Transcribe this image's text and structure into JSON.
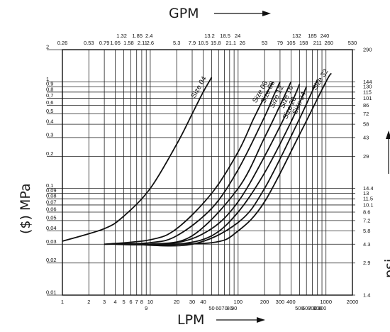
{
  "chart_data": {
    "type": "line",
    "title": "",
    "top_axis": {
      "label": "GPM",
      "ticks": [
        {
          "label": "0.26",
          "lpm": 1
        },
        {
          "label": "0.53",
          "lpm": 2
        },
        {
          "label": "0.79",
          "lpm": 3
        },
        {
          "label": "1.05",
          "lpm": 4
        },
        {
          "label": "1.32",
          "lpm": 5
        },
        {
          "label": "1.58",
          "lpm": 6
        },
        {
          "label": "1.85",
          "lpm": 7
        },
        {
          "label": "2.11",
          "lpm": 8
        },
        {
          "label": "2.4",
          "lpm": 9
        },
        {
          "label": "2.6",
          "lpm": 10
        },
        {
          "label": "5.3",
          "lpm": 20
        },
        {
          "label": "7.9",
          "lpm": 30
        },
        {
          "label": "10.5",
          "lpm": 40
        },
        {
          "label": "13.2",
          "lpm": 50
        },
        {
          "label": "15.8",
          "lpm": 60
        },
        {
          "label": "18.5",
          "lpm": 70
        },
        {
          "label": "21.1",
          "lpm": 80
        },
        {
          "label": "24",
          "lpm": 90
        },
        {
          "label": "26",
          "lpm": 100
        },
        {
          "label": "53",
          "lpm": 200
        },
        {
          "label": "79",
          "lpm": 300
        },
        {
          "label": "105",
          "lpm": 400
        },
        {
          "label": "132",
          "lpm": 500
        },
        {
          "label": "158",
          "lpm": 600
        },
        {
          "label": "185",
          "lpm": 700
        },
        {
          "label": "211",
          "lpm": 800
        },
        {
          "label": "240",
          "lpm": 900
        },
        {
          "label": "260",
          "lpm": 1000
        },
        {
          "label": "530",
          "lpm": 2000
        }
      ]
    },
    "bottom_axis": {
      "label": "LPM",
      "scale": "log",
      "range": [
        1,
        2000
      ],
      "ticks": [
        {
          "label": "1",
          "value": 1
        },
        {
          "label": "2",
          "value": 2
        },
        {
          "label": "3",
          "value": 3
        },
        {
          "label": "4",
          "value": 4
        },
        {
          "label": "5",
          "value": 5
        },
        {
          "label": "6",
          "value": 6
        },
        {
          "label": "7",
          "value": 7
        },
        {
          "label": "8",
          "value": 8
        },
        {
          "label": "9",
          "value": 9
        },
        {
          "label": "10",
          "value": 10
        },
        {
          "label": "20",
          "value": 20
        },
        {
          "label": "30",
          "value": 30
        },
        {
          "label": "40",
          "value": 40
        },
        {
          "label": "50",
          "value": 50
        },
        {
          "label": "60",
          "value": 60
        },
        {
          "label": "70",
          "value": 70
        },
        {
          "label": "80",
          "value": 80
        },
        {
          "label": "90",
          "value": 90
        },
        {
          "label": "100",
          "value": 100
        },
        {
          "label": "200",
          "value": 200
        },
        {
          "label": "300",
          "value": 300
        },
        {
          "label": "400",
          "value": 400
        },
        {
          "label": "500",
          "value": 500
        },
        {
          "label": "600",
          "value": 600
        },
        {
          "label": "700",
          "value": 700
        },
        {
          "label": "800",
          "value": 800
        },
        {
          "label": "900",
          "value": 900
        },
        {
          "label": "1000",
          "value": 1000
        },
        {
          "label": "2000",
          "value": 2000
        }
      ]
    },
    "left_axis": {
      "label": "($) MPa",
      "scale": "log",
      "range": [
        0.01,
        2
      ],
      "ticks": [
        {
          "label": "2",
          "value": 2
        },
        {
          "label": "1",
          "value": 1
        },
        {
          "label": "0,9",
          "value": 0.9
        },
        {
          "label": "0,8",
          "value": 0.8
        },
        {
          "label": "0,7",
          "value": 0.7
        },
        {
          "label": "0,6",
          "value": 0.6
        },
        {
          "label": "0,5",
          "value": 0.5
        },
        {
          "label": "0,4",
          "value": 0.4
        },
        {
          "label": "0,3",
          "value": 0.3
        },
        {
          "label": "0,2",
          "value": 0.2
        },
        {
          "label": "0,1",
          "value": 0.1
        },
        {
          "label": "0,09",
          "value": 0.09
        },
        {
          "label": "0,08",
          "value": 0.08
        },
        {
          "label": "0,07",
          "value": 0.07
        },
        {
          "label": "0,06",
          "value": 0.06
        },
        {
          "label": "0,05",
          "value": 0.05
        },
        {
          "label": "0,04",
          "value": 0.04
        },
        {
          "label": "0,03",
          "value": 0.03
        },
        {
          "label": "0,02",
          "value": 0.02
        },
        {
          "label": "0,01",
          "value": 0.01
        }
      ]
    },
    "right_axis": {
      "label": "psi",
      "ticks": [
        {
          "label": "290",
          "mpa": 2
        },
        {
          "label": "144",
          "mpa": 1
        },
        {
          "label": "130",
          "mpa": 0.9
        },
        {
          "label": "115",
          "mpa": 0.8
        },
        {
          "label": "101",
          "mpa": 0.7
        },
        {
          "label": "86",
          "mpa": 0.6
        },
        {
          "label": "72",
          "mpa": 0.5
        },
        {
          "label": "58",
          "mpa": 0.4
        },
        {
          "label": "43",
          "mpa": 0.3
        },
        {
          "label": "29",
          "mpa": 0.2
        },
        {
          "label": "14.4",
          "mpa": 0.1
        },
        {
          "label": "13",
          "mpa": 0.09
        },
        {
          "label": "11.5",
          "mpa": 0.08
        },
        {
          "label": "10.1",
          "mpa": 0.07
        },
        {
          "label": "8.6",
          "mpa": 0.06
        },
        {
          "label": "7.2",
          "mpa": 0.05
        },
        {
          "label": "5.8",
          "mpa": 0.04
        },
        {
          "label": "4.3",
          "mpa": 0.03
        },
        {
          "label": "2.9",
          "mpa": 0.02
        },
        {
          "label": "1.4",
          "mpa": 0.01
        }
      ]
    },
    "grid": true,
    "series": [
      {
        "name": "Size 04",
        "points": [
          [
            1,
            0.032
          ],
          [
            3,
            0.042
          ],
          [
            5,
            0.055
          ],
          [
            10,
            0.1
          ],
          [
            20,
            0.26
          ],
          [
            30,
            0.5
          ],
          [
            40,
            0.8
          ],
          [
            50,
            1.1
          ]
        ]
      },
      {
        "name": "Size 06",
        "points": [
          [
            3,
            0.03
          ],
          [
            10,
            0.033
          ],
          [
            20,
            0.042
          ],
          [
            50,
            0.09
          ],
          [
            100,
            0.22
          ],
          [
            150,
            0.45
          ],
          [
            200,
            0.72
          ],
          [
            250,
            1.0
          ]
        ]
      },
      {
        "name": "Size 08",
        "points": [
          [
            3,
            0.03
          ],
          [
            10,
            0.031
          ],
          [
            20,
            0.036
          ],
          [
            50,
            0.065
          ],
          [
            100,
            0.15
          ],
          [
            200,
            0.47
          ],
          [
            250,
            0.72
          ],
          [
            300,
            1.0
          ]
        ]
      },
      {
        "name": "Size 12",
        "points": [
          [
            4,
            0.03
          ],
          [
            10,
            0.03
          ],
          [
            30,
            0.036
          ],
          [
            100,
            0.1
          ],
          [
            200,
            0.3
          ],
          [
            300,
            0.6
          ],
          [
            400,
            1.0
          ]
        ]
      },
      {
        "name": "Size 16",
        "points": [
          [
            5,
            0.03
          ],
          [
            20,
            0.031
          ],
          [
            50,
            0.042
          ],
          [
            100,
            0.075
          ],
          [
            200,
            0.2
          ],
          [
            400,
            0.62
          ],
          [
            500,
            0.95
          ]
        ]
      },
      {
        "name": "Size 20",
        "points": [
          [
            5,
            0.03
          ],
          [
            20,
            0.03
          ],
          [
            50,
            0.036
          ],
          [
            100,
            0.06
          ],
          [
            200,
            0.14
          ],
          [
            400,
            0.42
          ],
          [
            600,
            0.9
          ]
        ]
      },
      {
        "name": "Size 24",
        "points": [
          [
            6,
            0.03
          ],
          [
            30,
            0.03
          ],
          [
            100,
            0.048
          ],
          [
            200,
            0.1
          ],
          [
            500,
            0.45
          ],
          [
            800,
            1.05
          ]
        ]
      },
      {
        "name": "Size 32",
        "points": [
          [
            7,
            0.03
          ],
          [
            50,
            0.031
          ],
          [
            100,
            0.04
          ],
          [
            200,
            0.075
          ],
          [
            500,
            0.32
          ],
          [
            1000,
            1.0
          ],
          [
            1150,
            1.2
          ]
        ]
      }
    ]
  }
}
